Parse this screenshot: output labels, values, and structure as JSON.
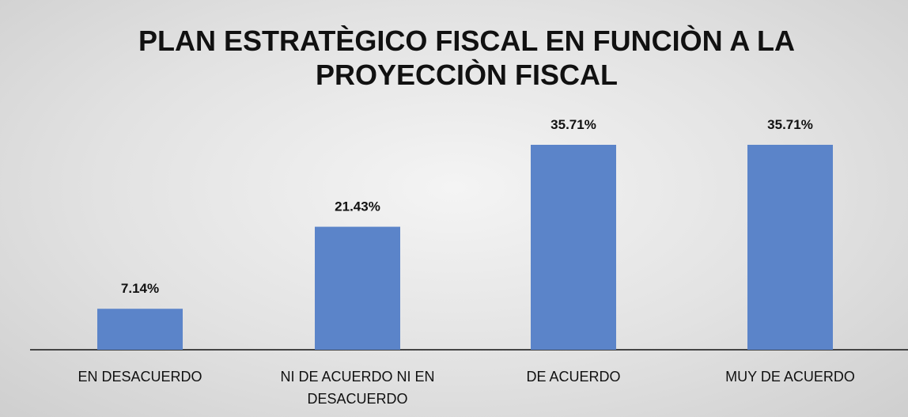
{
  "chart_data": {
    "type": "bar",
    "title": "PLAN ESTRATÈGICO FISCAL EN FUNCIÒN A LA PROYECCIÒN FISCAL",
    "categories": [
      "EN DESACUERDO",
      "NI DE ACUERDO NI EN DESACUERDO",
      "DE ACUERDO",
      "MUY DE ACUERDO"
    ],
    "values": [
      7.14,
      21.43,
      35.71,
      35.71
    ],
    "value_labels": [
      "7.14%",
      "21.43%",
      "35.71%",
      "35.71%"
    ],
    "color": "#5b84c9"
  }
}
